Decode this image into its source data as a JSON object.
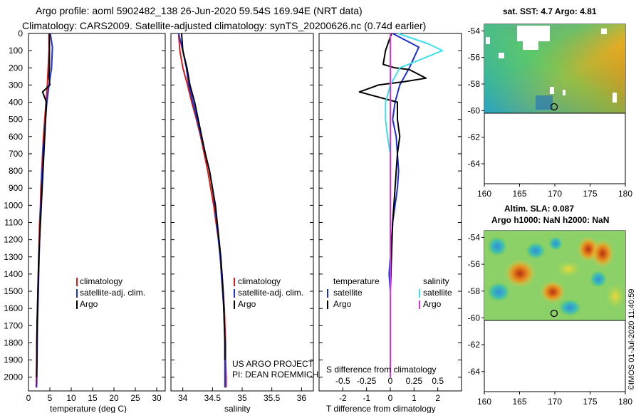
{
  "header": {
    "line1": "Argo profile: aoml 5902482_138 26-Jun-2020 59.54S 169.94E (NRT data)",
    "line2": "Climatology: CARS2009. Satellite-adjusted climatology: synTS_20200626.nc (0.74d earlier)"
  },
  "colors": {
    "climatology": "#e01818",
    "satellite_adj": "#1c2ed8",
    "argo": "#000000",
    "satellite_s": "#40e0e8",
    "argo_s": "#e030e0"
  },
  "credits": {
    "project": "US ARGO PROJECT",
    "pi": "PI: DEAN ROEMMICH",
    "stamp": "©IMOS 01-Jul-2020 11:40:59"
  },
  "legends": {
    "temperature": [
      "climatology",
      "satellite-adj. clim.",
      "Argo"
    ],
    "salinity": [
      "climatology",
      "satellite-adj. clim.",
      "Argo"
    ],
    "diff_left_title": "temperature",
    "diff_right_title": "salinity",
    "diff_left": [
      "satellite",
      "Argo"
    ],
    "diff_right": [
      "satellite",
      "Argo"
    ]
  },
  "chart_data": [
    {
      "type": "line",
      "name": "temperature-profile",
      "xlabel": "temperature (deg C)",
      "ylabel": "",
      "xlim": [
        0,
        32
      ],
      "ylim": [
        0,
        2080
      ],
      "yticks": [
        0,
        100,
        200,
        300,
        400,
        500,
        600,
        700,
        800,
        900,
        1000,
        1100,
        1200,
        1300,
        1400,
        1500,
        1600,
        1700,
        1800,
        1900,
        2000
      ],
      "xticks": [
        0,
        5,
        10,
        15,
        20,
        25,
        30
      ],
      "series": [
        {
          "name": "climatology",
          "color": "#e01818",
          "x": [
            4.8,
            4.8,
            4.6,
            4.4,
            4.1,
            3.8,
            3.5,
            3.3,
            3.1,
            2.9,
            2.8,
            2.6,
            2.5,
            2.4,
            2.3,
            2.2,
            2.1,
            2.0,
            1.95,
            1.9,
            1.85,
            1.8
          ],
          "y": [
            0,
            100,
            200,
            300,
            400,
            500,
            600,
            700,
            800,
            900,
            1000,
            1100,
            1200,
            1300,
            1400,
            1500,
            1600,
            1700,
            1800,
            1900,
            2000,
            2060
          ]
        },
        {
          "name": "satellite-adj. clim.",
          "color": "#1c2ed8",
          "x": [
            5.1,
            5.6,
            5.4,
            4.8,
            4.3,
            4.0,
            3.7,
            3.4,
            3.2,
            3.0,
            2.9,
            2.7,
            2.6,
            2.5,
            2.4,
            2.3,
            2.2,
            2.1,
            2.05,
            2.0,
            1.95,
            1.9
          ],
          "y": [
            0,
            80,
            200,
            300,
            400,
            500,
            600,
            700,
            800,
            900,
            1000,
            1100,
            1200,
            1300,
            1400,
            1500,
            1600,
            1700,
            1800,
            1900,
            2000,
            2060
          ]
        },
        {
          "name": "Argo",
          "color": "#000000",
          "x": [
            4.9,
            4.9,
            4.9,
            4.8,
            5.0,
            3.3,
            4.2,
            4.0,
            3.8,
            3.4,
            3.0,
            2.8,
            2.6,
            2.4,
            2.3,
            2.2,
            2.1,
            2.0,
            1.95,
            1.95,
            1.9
          ],
          "y": [
            0,
            100,
            200,
            250,
            300,
            340,
            400,
            500,
            600,
            800,
            1000,
            1100,
            1200,
            1300,
            1400,
            1500,
            1600,
            1700,
            1800,
            1900,
            2000
          ]
        }
      ]
    },
    {
      "type": "line",
      "name": "salinity-profile",
      "xlabel": "salinity",
      "xlim": [
        33.8,
        36.2
      ],
      "ylim": [
        0,
        2080
      ],
      "xticks": [
        34,
        34.5,
        35,
        35.5,
        36
      ],
      "series": [
        {
          "name": "climatology",
          "color": "#e01818",
          "x": [
            33.93,
            33.95,
            34.0,
            34.08,
            34.15,
            34.23,
            34.3,
            34.36,
            34.42,
            34.47,
            34.52,
            34.56,
            34.6,
            34.63,
            34.66,
            34.68,
            34.7,
            34.71,
            34.72,
            34.72,
            34.73,
            34.73
          ],
          "y": [
            0,
            100,
            200,
            300,
            400,
            500,
            600,
            700,
            800,
            900,
            1000,
            1100,
            1200,
            1300,
            1400,
            1500,
            1600,
            1700,
            1800,
            1900,
            2000,
            2060
          ]
        },
        {
          "name": "satellite-adj. clim.",
          "color": "#1c2ed8",
          "x": [
            33.93,
            34.0,
            34.06,
            34.1,
            34.17,
            34.24,
            34.31,
            34.38,
            34.45,
            34.5,
            34.54,
            34.57,
            34.6,
            34.63,
            34.65,
            34.67,
            34.69,
            34.7,
            34.71,
            34.71,
            34.71,
            34.71
          ],
          "y": [
            0,
            100,
            200,
            300,
            400,
            500,
            600,
            700,
            800,
            900,
            1000,
            1100,
            1200,
            1300,
            1400,
            1500,
            1600,
            1700,
            1800,
            1900,
            2000,
            2060
          ]
        },
        {
          "name": "Argo",
          "color": "#000000",
          "x": [
            33.98,
            34.0,
            34.07,
            34.12,
            34.2,
            34.26,
            34.32,
            34.38,
            34.45,
            34.5,
            34.55,
            34.58,
            34.61,
            34.64,
            34.66,
            34.68,
            34.69,
            34.7,
            34.71,
            34.71
          ],
          "y": [
            0,
            100,
            200,
            300,
            400,
            500,
            600,
            700,
            800,
            900,
            1000,
            1100,
            1200,
            1300,
            1400,
            1500,
            1600,
            1700,
            1800,
            1900
          ]
        }
      ]
    },
    {
      "type": "line",
      "name": "difference-profile",
      "xlabel": "T difference from climatology",
      "title_inner": "S difference from climatology",
      "xlim": [
        -3,
        3
      ],
      "ylim": [
        0,
        2080
      ],
      "xticks": [
        -2,
        -1,
        0,
        1,
        2
      ],
      "xticks_s": [
        -0.5,
        -0.25,
        0,
        0.25,
        0.5
      ],
      "series": [
        {
          "name": "T satellite",
          "color": "#1c2ed8",
          "x": [
            0.1,
            1.2,
            0.8,
            0.4,
            0.2,
            0.1,
            0.25,
            0.3,
            0.35,
            0.3,
            0.2,
            0.1,
            0.05,
            0.0,
            -0.05,
            0.0,
            0.0,
            0.0,
            0.0,
            0.0
          ],
          "y": [
            0,
            80,
            200,
            300,
            400,
            500,
            600,
            700,
            800,
            900,
            1000,
            1100,
            1200,
            1300,
            1400,
            1500,
            1600,
            1700,
            1800,
            2000
          ]
        },
        {
          "name": "T Argo",
          "color": "#000000",
          "x": [
            0.05,
            -0.2,
            -0.3,
            0.2,
            0.8,
            1.5,
            0.6,
            -0.5,
            -1.3,
            0.3,
            0.3,
            0.4,
            0.3,
            0.25,
            0.2,
            0.1,
            0.05,
            0.0,
            0.0,
            0.0,
            0.0
          ],
          "y": [
            0,
            100,
            180,
            200,
            210,
            260,
            280,
            300,
            340,
            400,
            500,
            600,
            700,
            800,
            900,
            1100,
            1300,
            1500,
            1700,
            1900,
            2000
          ]
        },
        {
          "name": "S satellite",
          "color": "#40e0e8",
          "x": [
            0.08,
            0.4,
            0.55,
            0.1,
            0.0,
            -0.05,
            -0.05,
            -0.03,
            0.0,
            0.0,
            0.0,
            0.0,
            0.0,
            0.0,
            0.0,
            0.0,
            0.0,
            0.0,
            0.0,
            0.0
          ],
          "y": [
            0,
            60,
            100,
            200,
            300,
            400,
            500,
            600,
            700,
            800,
            900,
            1000,
            1200,
            1300,
            1400,
            1500,
            1600,
            1800,
            1900,
            2000
          ]
        },
        {
          "name": "S Argo",
          "color": "#e030e0",
          "x": [
            0.0,
            0.0,
            0.0
          ],
          "y": [
            0,
            1000,
            2000
          ]
        }
      ]
    },
    {
      "type": "heatmap",
      "name": "sst-map",
      "title": "sat. SST: 4.7 Argo: 4.81",
      "xlim": [
        160,
        180
      ],
      "ylim": [
        -65.5,
        -53.5
      ],
      "xticks": [
        160,
        165,
        170,
        175,
        180
      ],
      "yticks": [
        -54,
        -56,
        -58,
        -60,
        -62,
        -64
      ],
      "marker": {
        "lon": 169.94,
        "lat": -59.54
      }
    },
    {
      "type": "heatmap",
      "name": "sla-map",
      "title_1": "Altim. SLA: 0.087",
      "title_2": "Argo h1000: NaN h2000: NaN",
      "xlim": [
        160,
        180
      ],
      "ylim": [
        -65.5,
        -53.5
      ],
      "xticks": [
        160,
        165,
        170,
        175,
        180
      ],
      "yticks": [
        -54,
        -56,
        -58,
        -60,
        -62,
        -64
      ],
      "marker": {
        "lon": 169.94,
        "lat": -59.54
      }
    }
  ]
}
